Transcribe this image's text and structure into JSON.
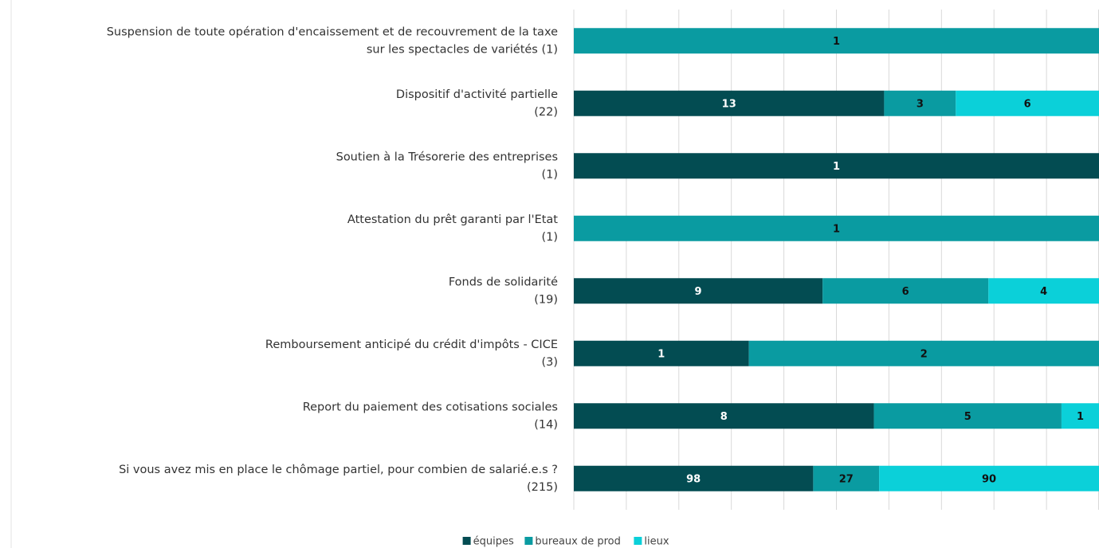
{
  "chart_data": {
    "type": "bar",
    "orientation": "horizontal",
    "stacking": "percent",
    "categories": [
      [
        "Suspension de toute opération d'encaissement et de recouvrement de la taxe",
        "sur les spectacles de variétés (1)"
      ],
      [
        "Dispositif d'activité partielle",
        "(22)"
      ],
      [
        "Soutien à la Trésorerie des entreprises",
        "(1)"
      ],
      [
        "Attestation du prêt garanti par l'Etat",
        "(1)"
      ],
      [
        "Fonds de solidarité",
        "(19)"
      ],
      [
        "Remboursement anticipé du crédit d'impôts - CICE",
        "(3)"
      ],
      [
        "Report du paiement des cotisations sociales",
        "(14)"
      ],
      [
        "Si vous avez mis en place le chômage partiel, pour combien de salarié.e.s ?",
        "(215)"
      ]
    ],
    "series": [
      {
        "name": "équipes",
        "color": "#034c52",
        "label_color": "#ffffff",
        "values": [
          null,
          13,
          1,
          null,
          9,
          1,
          8,
          98
        ]
      },
      {
        "name": "bureaux de prod",
        "color": "#0a9ba1",
        "label_color": "#111111",
        "values": [
          1,
          3,
          null,
          1,
          6,
          2,
          5,
          27
        ]
      },
      {
        "name": "lieux",
        "color": "#0bd0d9",
        "label_color": "#111111",
        "values": [
          null,
          6,
          null,
          null,
          4,
          null,
          1,
          90
        ]
      }
    ],
    "xlim": [
      0,
      100
    ],
    "xticks": [
      0,
      10,
      20,
      30,
      40,
      50,
      60,
      70,
      80,
      90,
      100
    ],
    "grid": true,
    "legend": "bottom"
  }
}
